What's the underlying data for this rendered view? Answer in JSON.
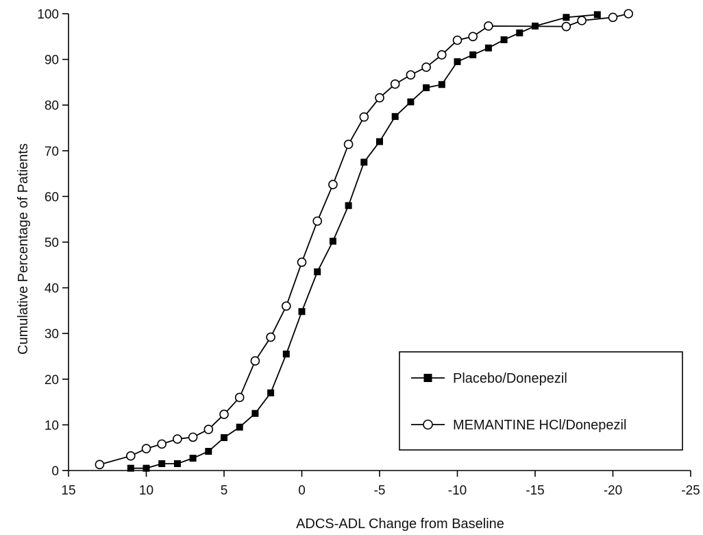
{
  "chart_data": {
    "type": "line",
    "title": "",
    "xlabel": "ADCS-ADL Change from Baseline",
    "ylabel": "Cumulative Percentage of Patients",
    "xlim": [
      15,
      -25
    ],
    "ylim": [
      0,
      100
    ],
    "x_reversed": true,
    "xticks": [
      15,
      10,
      5,
      0,
      -5,
      -10,
      -15,
      -20,
      -25
    ],
    "xtick_labels": [
      "15",
      "10",
      "5",
      "0",
      "-5",
      "-10",
      "-15",
      "-20",
      "-25"
    ],
    "yticks": [
      0,
      10,
      20,
      30,
      40,
      50,
      60,
      70,
      80,
      90,
      100
    ],
    "ytick_labels": [
      "0",
      "10",
      "20",
      "30",
      "40",
      "50",
      "60",
      "70",
      "80",
      "90",
      "100"
    ],
    "grid": false,
    "legend_position": "bottom-right",
    "series": [
      {
        "name": "Placebo/Donepezil",
        "marker": "filled-square",
        "color": "#000000",
        "points": [
          {
            "x": 11,
            "y": 0.5
          },
          {
            "x": 10,
            "y": 0.5
          },
          {
            "x": 9,
            "y": 1.5
          },
          {
            "x": 8,
            "y": 1.5
          },
          {
            "x": 7,
            "y": 2.7
          },
          {
            "x": 6,
            "y": 4.2
          },
          {
            "x": 5,
            "y": 7.2
          },
          {
            "x": 4,
            "y": 9.5
          },
          {
            "x": 3,
            "y": 12.5
          },
          {
            "x": 2,
            "y": 17
          },
          {
            "x": 1,
            "y": 25.5
          },
          {
            "x": 0,
            "y": 34.8
          },
          {
            "x": -1,
            "y": 43.5
          },
          {
            "x": -2,
            "y": 50.2
          },
          {
            "x": -3,
            "y": 58
          },
          {
            "x": -4,
            "y": 67.5
          },
          {
            "x": -5,
            "y": 72
          },
          {
            "x": -6,
            "y": 77.5
          },
          {
            "x": -7,
            "y": 80.7
          },
          {
            "x": -8,
            "y": 83.8
          },
          {
            "x": -9,
            "y": 84.5
          },
          {
            "x": -10,
            "y": 89.5
          },
          {
            "x": -11,
            "y": 91
          },
          {
            "x": -12,
            "y": 92.5
          },
          {
            "x": -13,
            "y": 94.3
          },
          {
            "x": -14,
            "y": 95.8
          },
          {
            "x": -15,
            "y": 97.3
          },
          {
            "x": -17,
            "y": 99.2
          },
          {
            "x": -19,
            "y": 99.8
          }
        ]
      },
      {
        "name": "MEMANTINE HCl/Donepezil",
        "marker": "open-circle",
        "color": "#000000",
        "points": [
          {
            "x": 13,
            "y": 1.3
          },
          {
            "x": 11,
            "y": 3.2
          },
          {
            "x": 10,
            "y": 4.8
          },
          {
            "x": 9,
            "y": 5.8
          },
          {
            "x": 8,
            "y": 6.9
          },
          {
            "x": 7,
            "y": 7.3
          },
          {
            "x": 6,
            "y": 9
          },
          {
            "x": 5,
            "y": 12.3
          },
          {
            "x": 4,
            "y": 16
          },
          {
            "x": 3,
            "y": 24
          },
          {
            "x": 2,
            "y": 29.2
          },
          {
            "x": 1,
            "y": 36
          },
          {
            "x": 0,
            "y": 45.6
          },
          {
            "x": -1,
            "y": 54.6
          },
          {
            "x": -2,
            "y": 62.6
          },
          {
            "x": -3,
            "y": 71.4
          },
          {
            "x": -4,
            "y": 77.4
          },
          {
            "x": -5,
            "y": 81.6
          },
          {
            "x": -6,
            "y": 84.6
          },
          {
            "x": -7,
            "y": 86.6
          },
          {
            "x": -8,
            "y": 88.3
          },
          {
            "x": -9,
            "y": 91
          },
          {
            "x": -10,
            "y": 94.2
          },
          {
            "x": -11,
            "y": 95
          },
          {
            "x": -12,
            "y": 97.3
          },
          {
            "x": -17,
            "y": 97.2
          },
          {
            "x": -18,
            "y": 98.5
          },
          {
            "x": -20,
            "y": 99.2
          },
          {
            "x": -21,
            "y": 100
          }
        ]
      }
    ],
    "legend": {
      "entries": [
        "Placebo/Donepezil",
        "MEMANTINE HCl/Donepezil"
      ]
    }
  }
}
